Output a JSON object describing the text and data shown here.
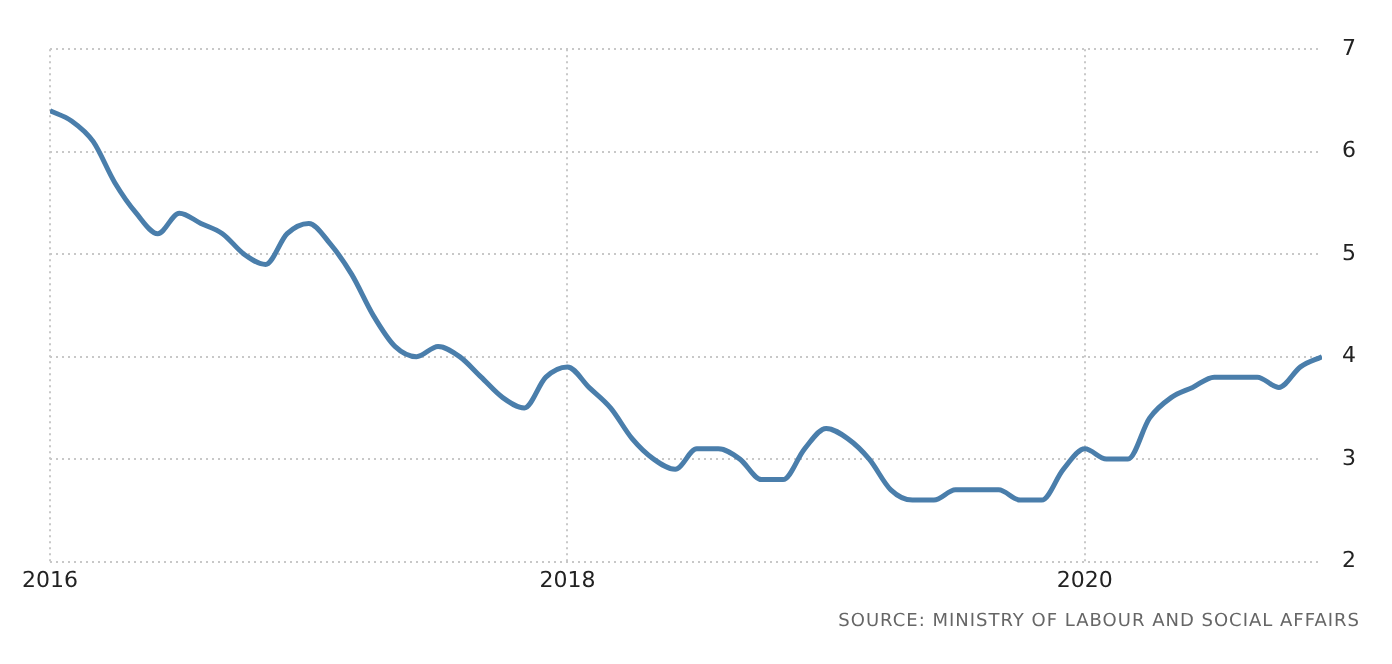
{
  "chart_data": {
    "type": "line",
    "x": [
      "2016-01",
      "2016-02",
      "2016-03",
      "2016-04",
      "2016-05",
      "2016-06",
      "2016-07",
      "2016-08",
      "2016-09",
      "2016-10",
      "2016-11",
      "2016-12",
      "2017-01",
      "2017-02",
      "2017-03",
      "2017-04",
      "2017-05",
      "2017-06",
      "2017-07",
      "2017-08",
      "2017-09",
      "2017-10",
      "2017-11",
      "2017-12",
      "2018-01",
      "2018-02",
      "2018-03",
      "2018-04",
      "2018-05",
      "2018-06",
      "2018-07",
      "2018-08",
      "2018-09",
      "2018-10",
      "2018-11",
      "2018-12",
      "2019-01",
      "2019-02",
      "2019-03",
      "2019-04",
      "2019-05",
      "2019-06",
      "2019-07",
      "2019-08",
      "2019-09",
      "2019-10",
      "2019-11",
      "2019-12",
      "2020-01",
      "2020-02",
      "2020-03",
      "2020-04",
      "2020-05",
      "2020-06",
      "2020-07",
      "2020-08",
      "2020-09",
      "2020-10",
      "2020-11",
      "2020-12"
    ],
    "series": [
      {
        "color": "#4a7eab",
        "values": [
          6.4,
          6.3,
          6.1,
          5.7,
          5.4,
          5.2,
          5.4,
          5.3,
          5.2,
          5.0,
          4.9,
          5.2,
          5.3,
          5.1,
          4.8,
          4.4,
          4.1,
          4.0,
          4.1,
          4.0,
          3.8,
          3.6,
          3.5,
          3.8,
          3.9,
          3.7,
          3.5,
          3.2,
          3.0,
          2.9,
          3.1,
          3.1,
          3.0,
          2.8,
          2.8,
          3.1,
          3.3,
          3.2,
          3.0,
          2.7,
          2.6,
          2.6,
          2.7,
          2.7,
          2.7,
          2.6,
          2.6,
          2.9,
          3.1,
          3.0,
          3.0,
          3.4,
          3.6,
          3.7,
          3.8,
          3.8,
          3.8,
          3.7,
          3.9,
          4.0
        ]
      }
    ],
    "xlim": [
      "2016-01",
      "2020-12"
    ],
    "xticks": [
      "2016",
      "2018",
      "2020"
    ],
    "ylim": [
      2,
      7
    ],
    "yticks": [
      2,
      3,
      4,
      5,
      6,
      7
    ],
    "grid": true,
    "legend": false,
    "marker": "none",
    "line_style": "solid",
    "annotations": [
      "SOURCE: MINISTRY OF LABOUR AND SOCIAL AFFAIRS"
    ]
  }
}
